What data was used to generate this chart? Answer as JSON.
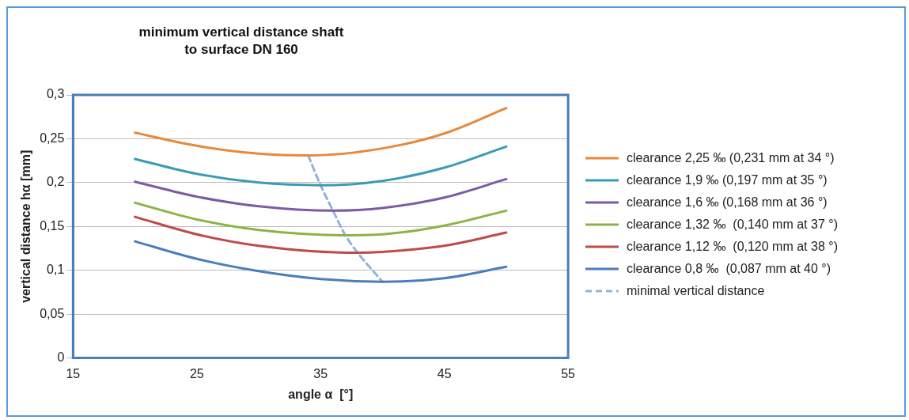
{
  "chart_data": {
    "type": "line",
    "title": "minimum  vertical distance shaft to surface DN 160",
    "xlabel": "angle α  [°]",
    "ylabel": "vertical distance hα [mm]",
    "xlim": [
      15,
      55
    ],
    "xticks": [
      15,
      25,
      35,
      45,
      55
    ],
    "ylim": [
      0,
      0.3
    ],
    "yticks": [
      0,
      {
        "value": 0.05,
        "label": "0,05"
      },
      {
        "value": 0.1,
        "label": "0,1"
      },
      {
        "value": 0.15,
        "label": "0,15"
      },
      {
        "value": 0.2,
        "label": "0,2"
      },
      {
        "value": 0.25,
        "label": "0,25"
      },
      {
        "value": 0.3,
        "label": "0,3"
      }
    ],
    "grid": "y",
    "legend": "right",
    "marker": "none",
    "series": [
      {
        "name": "clearance 2,25 ‰ (0,231 mm at 34 °)",
        "color": "#e8883a",
        "x": [
          20,
          25,
          30,
          34,
          40,
          45,
          50
        ],
        "values": [
          0.257,
          0.242,
          0.233,
          0.231,
          0.239,
          0.256,
          0.285
        ]
      },
      {
        "name": "clearance 1,9 ‰ (0,197 mm at 35 °)",
        "color": "#3a9bb5",
        "x": [
          20,
          25,
          30,
          35,
          40,
          45,
          50
        ],
        "values": [
          0.227,
          0.21,
          0.2,
          0.197,
          0.202,
          0.217,
          0.241
        ]
      },
      {
        "name": "clearance 1,6 ‰ (0,168 mm at 36 °)",
        "color": "#7b5aa6",
        "x": [
          20,
          25,
          30,
          36,
          40,
          45,
          50
        ],
        "values": [
          0.201,
          0.184,
          0.173,
          0.168,
          0.171,
          0.183,
          0.204
        ]
      },
      {
        "name": "clearance 1,32 ‰  (0,140 mm at 37 °)",
        "color": "#8db245",
        "x": [
          20,
          25,
          30,
          37,
          40,
          45,
          50
        ],
        "values": [
          0.177,
          0.158,
          0.146,
          0.14,
          0.141,
          0.151,
          0.168
        ]
      },
      {
        "name": "clearance 1,12 ‰  (0,120 mm at 38 °)",
        "color": "#be4b48",
        "x": [
          20,
          25,
          30,
          38,
          40,
          45,
          50
        ],
        "values": [
          0.161,
          0.141,
          0.128,
          0.12,
          0.121,
          0.128,
          0.143
        ]
      },
      {
        "name": "clearance 0,8 ‰  (0,087 mm at 40 °)",
        "color": "#4a7ebb",
        "x": [
          20,
          25,
          30,
          35,
          40,
          45,
          50
        ],
        "values": [
          0.133,
          0.113,
          0.099,
          0.09,
          0.087,
          0.091,
          0.104
        ]
      },
      {
        "name": "minimal vertical distance",
        "color": "#95b3d7",
        "line_style": "dashed",
        "x": [
          34,
          35,
          36,
          37,
          38,
          40
        ],
        "values": [
          0.231,
          0.197,
          0.168,
          0.14,
          0.12,
          0.087
        ]
      }
    ]
  }
}
